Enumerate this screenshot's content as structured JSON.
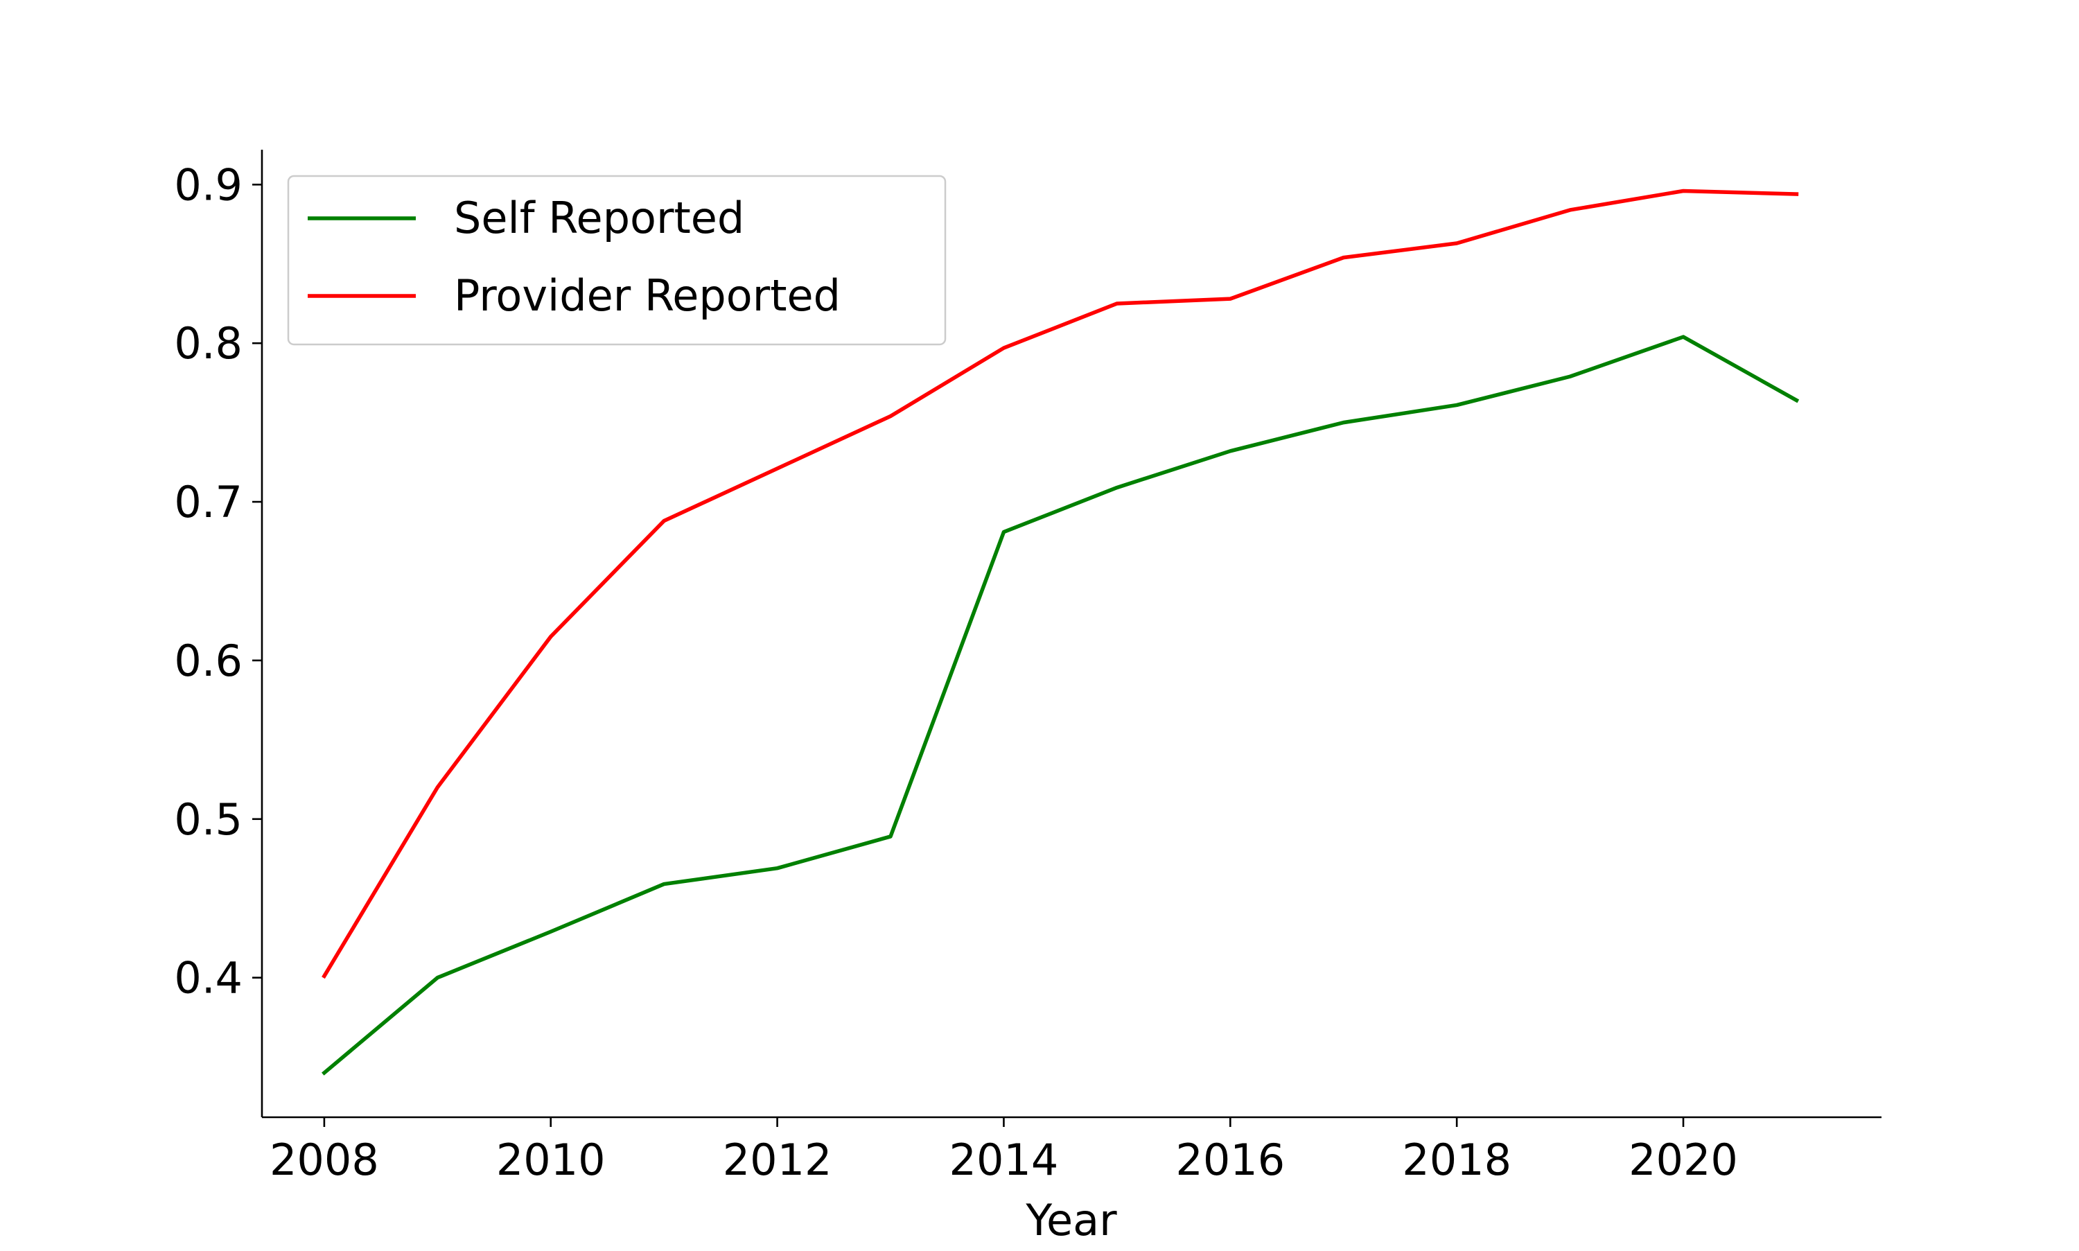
{
  "chart_data": {
    "type": "line",
    "xlabel": "Year",
    "ylabel": "",
    "x": [
      2008,
      2009,
      2010,
      2011,
      2012,
      2013,
      2014,
      2015,
      2016,
      2017,
      2018,
      2019,
      2020,
      2021
    ],
    "series": [
      {
        "name": "Self Reported",
        "color": "#008000",
        "values": [
          0.34,
          0.4,
          0.429,
          0.459,
          0.469,
          0.489,
          0.681,
          0.709,
          0.732,
          0.75,
          0.761,
          0.779,
          0.804,
          0.764
        ]
      },
      {
        "name": "Provider Reported",
        "color": "#ff0000",
        "values": [
          0.401,
          0.52,
          0.615,
          0.688,
          0.721,
          0.754,
          0.797,
          0.825,
          0.828,
          0.854,
          0.863,
          0.884,
          0.896,
          0.894
        ]
      }
    ],
    "xticks": [
      2008,
      2010,
      2012,
      2014,
      2016,
      2018,
      2020
    ],
    "yticks": [
      0.4,
      0.5,
      0.6,
      0.7,
      0.8,
      0.9
    ],
    "ytick_labels": [
      "0.4",
      "0.5",
      "0.6",
      "0.7",
      "0.8",
      "0.9"
    ],
    "xlim": [
      2007.45,
      2021.75
    ],
    "ylim": [
      0.312,
      0.922
    ],
    "grid": false,
    "legend_position": "top-left"
  }
}
